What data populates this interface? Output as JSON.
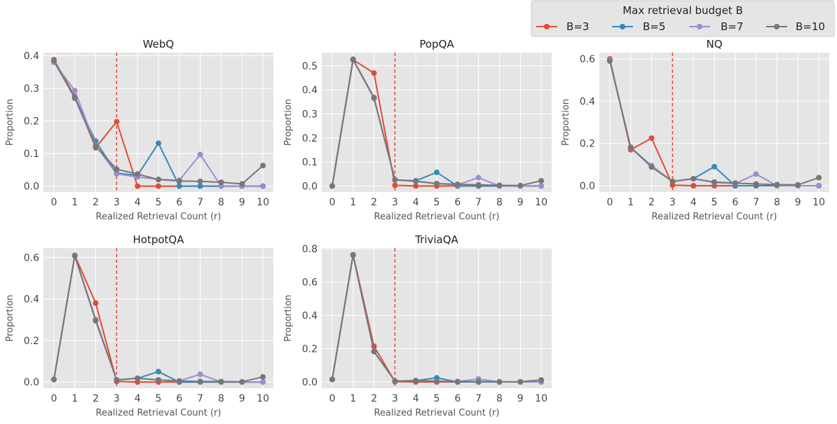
{
  "legend": {
    "title": "Max retrieval budget B",
    "placement": "top-right"
  },
  "colors": {
    "B3": "#e24a33",
    "B5": "#348abd",
    "B7": "#988ed5",
    "B10": "#777777",
    "panel_bg": "#e5e5e5",
    "grid": "#ffffff",
    "threshold_line": "#e24a33"
  },
  "chart_data": [
    {
      "type": "line",
      "title": "WebQ",
      "xlabel": "Realized Retrieval Count (r)",
      "ylabel": "Proportion",
      "x": [
        0,
        1,
        2,
        3,
        4,
        5,
        6,
        7,
        8,
        9,
        10
      ],
      "xticks": [
        "0",
        "1",
        "2",
        "3",
        "4",
        "5",
        "6",
        "7",
        "8",
        "9",
        "10"
      ],
      "yticks": [
        "0.0",
        "0.1",
        "0.2",
        "0.3",
        "0.4"
      ],
      "ylim": [
        -0.018,
        0.41
      ],
      "grid": true,
      "vline_x": 3,
      "series": [
        {
          "name": "B=3",
          "values": [
            0.388,
            0.275,
            0.118,
            0.198,
            0.0,
            0.0,
            0.0,
            0.0,
            0.0,
            0.0,
            0.0
          ]
        },
        {
          "name": "B=5",
          "values": [
            0.383,
            0.272,
            0.138,
            0.04,
            0.033,
            0.132,
            0.0,
            0.0,
            0.0,
            0.0,
            0.0
          ]
        },
        {
          "name": "B=7",
          "values": [
            0.38,
            0.293,
            0.125,
            0.038,
            0.028,
            0.021,
            0.018,
            0.097,
            0.0,
            0.0,
            0.0
          ]
        },
        {
          "name": "B=10",
          "values": [
            0.385,
            0.27,
            0.123,
            0.052,
            0.037,
            0.02,
            0.016,
            0.015,
            0.012,
            0.007,
            0.063
          ]
        }
      ]
    },
    {
      "type": "line",
      "title": "PopQA",
      "xlabel": "Realized Retrieval Count (r)",
      "ylabel": "Proportion",
      "x": [
        0,
        1,
        2,
        3,
        4,
        5,
        6,
        7,
        8,
        9,
        10
      ],
      "xticks": [
        "0",
        "1",
        "2",
        "3",
        "4",
        "5",
        "6",
        "7",
        "8",
        "9",
        "10"
      ],
      "yticks": [
        "0.0",
        "0.1",
        "0.2",
        "0.3",
        "0.4",
        "0.5"
      ],
      "ylim": [
        -0.025,
        0.555
      ],
      "grid": true,
      "vline_x": 3,
      "series": [
        {
          "name": "B=3",
          "values": [
            0.0,
            0.525,
            0.47,
            0.003,
            0.0,
            0.0,
            0.0,
            0.0,
            0.0,
            0.0,
            0.0
          ]
        },
        {
          "name": "B=5",
          "values": [
            0.0,
            0.525,
            0.365,
            0.025,
            0.022,
            0.057,
            0.0,
            0.0,
            0.0,
            0.0,
            0.0
          ]
        },
        {
          "name": "B=7",
          "values": [
            0.0,
            0.527,
            0.365,
            0.025,
            0.02,
            0.01,
            0.005,
            0.035,
            0.0,
            0.0,
            0.0
          ]
        },
        {
          "name": "B=10",
          "values": [
            0.0,
            0.527,
            0.368,
            0.026,
            0.02,
            0.01,
            0.007,
            0.005,
            0.003,
            0.002,
            0.022
          ]
        }
      ]
    },
    {
      "type": "line",
      "title": "NQ",
      "xlabel": "Realized Retrieval Count (r)",
      "ylabel": "Proportion",
      "x": [
        0,
        1,
        2,
        3,
        4,
        5,
        6,
        7,
        8,
        9,
        10
      ],
      "xticks": [
        "0",
        "1",
        "2",
        "3",
        "4",
        "5",
        "6",
        "7",
        "8",
        "9",
        "10"
      ],
      "yticks": [
        "0.0",
        "0.2",
        "0.4",
        "0.6"
      ],
      "ylim": [
        -0.03,
        0.63
      ],
      "grid": true,
      "vline_x": 3,
      "series": [
        {
          "name": "B=3",
          "values": [
            0.6,
            0.17,
            0.225,
            0.003,
            0.0,
            0.0,
            0.0,
            0.0,
            0.0,
            0.0,
            0.0
          ]
        },
        {
          "name": "B=5",
          "values": [
            0.595,
            0.18,
            0.09,
            0.02,
            0.033,
            0.09,
            0.0,
            0.0,
            0.0,
            0.0,
            0.0
          ]
        },
        {
          "name": "B=7",
          "values": [
            0.595,
            0.18,
            0.095,
            0.02,
            0.033,
            0.015,
            0.01,
            0.055,
            0.0,
            0.0,
            0.0
          ]
        },
        {
          "name": "B=10",
          "values": [
            0.59,
            0.182,
            0.088,
            0.02,
            0.033,
            0.017,
            0.012,
            0.008,
            0.005,
            0.004,
            0.038
          ]
        }
      ]
    },
    {
      "type": "line",
      "title": "HotpotQA",
      "xlabel": "Realized Retrieval Count (r)",
      "ylabel": "Proportion",
      "x": [
        0,
        1,
        2,
        3,
        4,
        5,
        6,
        7,
        8,
        9,
        10
      ],
      "xticks": [
        "0",
        "1",
        "2",
        "3",
        "4",
        "5",
        "6",
        "7",
        "8",
        "9",
        "10"
      ],
      "yticks": [
        "0.0",
        "0.2",
        "0.4",
        "0.6"
      ],
      "ylim": [
        -0.03,
        0.645
      ],
      "grid": true,
      "vline_x": 3,
      "series": [
        {
          "name": "B=3",
          "values": [
            0.012,
            0.61,
            0.38,
            0.003,
            0.0,
            0.0,
            0.0,
            0.0,
            0.0,
            0.0,
            0.0
          ]
        },
        {
          "name": "B=5",
          "values": [
            0.012,
            0.608,
            0.295,
            0.01,
            0.018,
            0.05,
            0.0,
            0.0,
            0.0,
            0.0,
            0.0
          ]
        },
        {
          "name": "B=7",
          "values": [
            0.012,
            0.608,
            0.3,
            0.01,
            0.018,
            0.01,
            0.005,
            0.037,
            0.0,
            0.0,
            0.0
          ]
        },
        {
          "name": "B=10",
          "values": [
            0.012,
            0.608,
            0.298,
            0.01,
            0.018,
            0.01,
            0.005,
            0.003,
            0.002,
            0.001,
            0.025
          ]
        }
      ]
    },
    {
      "type": "line",
      "title": "TriviaQA",
      "xlabel": "Realized Retrieval Count (r)",
      "ylabel": "Proportion",
      "x": [
        0,
        1,
        2,
        3,
        4,
        5,
        6,
        7,
        8,
        9,
        10
      ],
      "xticks": [
        "0",
        "1",
        "2",
        "3",
        "4",
        "5",
        "6",
        "7",
        "8",
        "9",
        "10"
      ],
      "yticks": [
        "0.0",
        "0.2",
        "0.4",
        "0.6",
        "0.8"
      ],
      "ylim": [
        -0.038,
        0.805
      ],
      "grid": true,
      "vline_x": 3,
      "series": [
        {
          "name": "B=3",
          "values": [
            0.015,
            0.765,
            0.215,
            0.002,
            0.0,
            0.0,
            0.0,
            0.0,
            0.0,
            0.0,
            0.0
          ]
        },
        {
          "name": "B=5",
          "values": [
            0.015,
            0.763,
            0.183,
            0.005,
            0.008,
            0.025,
            0.0,
            0.0,
            0.0,
            0.0,
            0.0
          ]
        },
        {
          "name": "B=7",
          "values": [
            0.015,
            0.763,
            0.185,
            0.005,
            0.008,
            0.005,
            0.002,
            0.018,
            0.0,
            0.0,
            0.0
          ]
        },
        {
          "name": "B=10",
          "values": [
            0.015,
            0.763,
            0.183,
            0.005,
            0.008,
            0.004,
            0.002,
            0.002,
            0.001,
            0.001,
            0.012
          ]
        }
      ]
    }
  ]
}
